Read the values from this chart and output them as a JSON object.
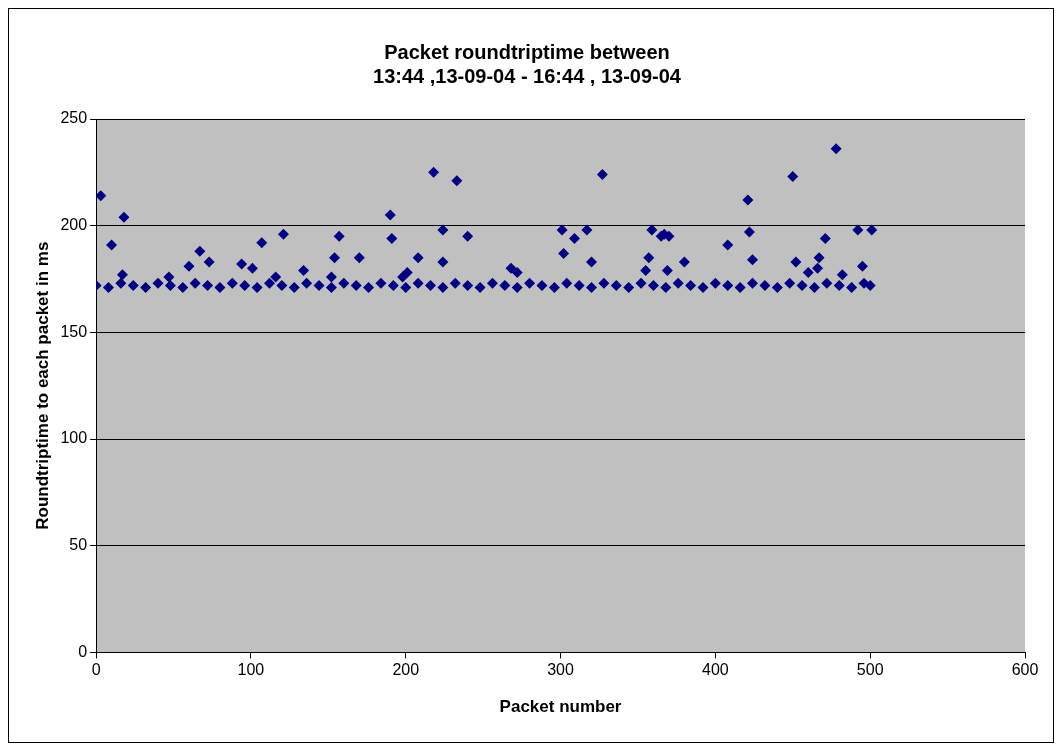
{
  "chart_data": {
    "type": "scatter",
    "title": "Packet roundtriptime between\n13:44 ,13-09-04 - 16:44 , 13-09-04",
    "xlabel": "Packet number",
    "ylabel": "Roundtriptime to each packet in ms",
    "series": [
      {
        "color": "#000080",
        "marker": "diamond",
        "x": [
          0,
          8,
          16,
          24,
          32,
          40,
          48,
          56,
          64,
          72,
          80,
          88,
          96,
          104,
          112,
          120,
          128,
          136,
          144,
          152,
          160,
          168,
          176,
          184,
          192,
          200,
          208,
          216,
          224,
          232,
          240,
          248,
          256,
          264,
          272,
          280,
          288,
          296,
          304,
          312,
          320,
          328,
          336,
          344,
          352,
          360,
          368,
          376,
          384,
          392,
          400,
          408,
          416,
          424,
          432,
          440,
          448,
          456,
          464,
          472,
          480,
          488,
          496,
          500,
          3,
          10,
          18,
          17,
          47,
          60,
          67,
          73,
          94,
          101,
          107,
          116,
          121,
          134,
          152,
          154,
          157,
          170,
          190,
          191,
          198,
          201,
          208,
          218,
          224,
          224,
          233,
          240,
          268,
          272,
          301,
          302,
          309,
          317,
          320,
          327,
          355,
          357,
          359,
          365,
          367,
          370,
          369,
          380,
          408,
          421,
          422,
          424,
          450,
          452,
          460,
          466,
          467,
          471,
          478,
          482,
          492,
          495,
          501
        ],
        "values": [
          172,
          171,
          173,
          172,
          171,
          173,
          172,
          171,
          173,
          172,
          171,
          173,
          172,
          171,
          173,
          172,
          171,
          173,
          172,
          171,
          173,
          172,
          171,
          173,
          172,
          171,
          173,
          172,
          171,
          173,
          172,
          171,
          173,
          172,
          171,
          173,
          172,
          171,
          173,
          172,
          171,
          173,
          172,
          171,
          173,
          172,
          171,
          173,
          172,
          171,
          173,
          172,
          171,
          173,
          172,
          171,
          173,
          172,
          171,
          173,
          172,
          171,
          173,
          172,
          214,
          191,
          204,
          177,
          176,
          181,
          188,
          183,
          182,
          180,
          192,
          176,
          196,
          179,
          176,
          185,
          195,
          185,
          205,
          194,
          176,
          178,
          185,
          225,
          198,
          183,
          221,
          195,
          180,
          178,
          198,
          187,
          194,
          198,
          183,
          224,
          179,
          185,
          198,
          195,
          196,
          195,
          179,
          183,
          191,
          212,
          197,
          184,
          223,
          183,
          178,
          180,
          185,
          194,
          236,
          177,
          198,
          181,
          198
        ]
      }
    ],
    "xlim": [
      0,
      600
    ],
    "xticks": [
      0,
      100,
      200,
      300,
      400,
      500,
      600
    ],
    "ylim": [
      0,
      250
    ],
    "yticks": [
      0,
      50,
      100,
      150,
      200,
      250
    ],
    "grid": "y",
    "legend": false
  }
}
